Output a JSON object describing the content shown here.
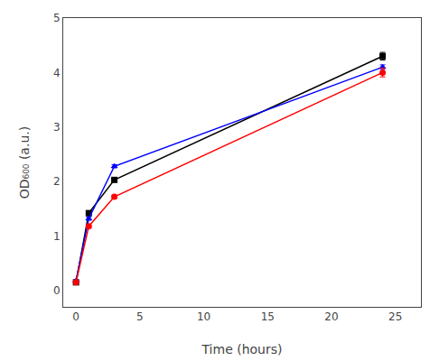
{
  "chart_data": {
    "type": "line",
    "xlabel": "Time (hours)",
    "ylabel": "OD₆₀₀ (a.u.)",
    "xlim": [
      -1.0,
      27
    ],
    "ylim": [
      -0.3,
      5.0
    ],
    "xticks": [
      0,
      5,
      10,
      15,
      20,
      25
    ],
    "yticks": [
      0,
      1,
      2,
      3,
      4,
      5
    ],
    "grid": false,
    "series": [
      {
        "color": "black",
        "marker": "square",
        "x": [
          0,
          1,
          3,
          24
        ],
        "values": [
          0.15,
          1.42,
          2.03,
          4.3
        ],
        "yerr": [
          0.005,
          0.03,
          0.03,
          0.07
        ]
      },
      {
        "color": "blue",
        "marker": "triangle-up",
        "x": [
          0,
          1,
          3,
          24
        ],
        "values": [
          0.18,
          1.32,
          2.28,
          4.1
        ],
        "yerr": [
          0.005,
          0.03,
          0.03,
          0.04
        ]
      },
      {
        "color": "red",
        "marker": "circle",
        "x": [
          0,
          1,
          3,
          24
        ],
        "values": [
          0.15,
          1.18,
          1.72,
          4.0
        ],
        "yerr": [
          0.005,
          0.02,
          0.03,
          0.08
        ]
      }
    ]
  }
}
